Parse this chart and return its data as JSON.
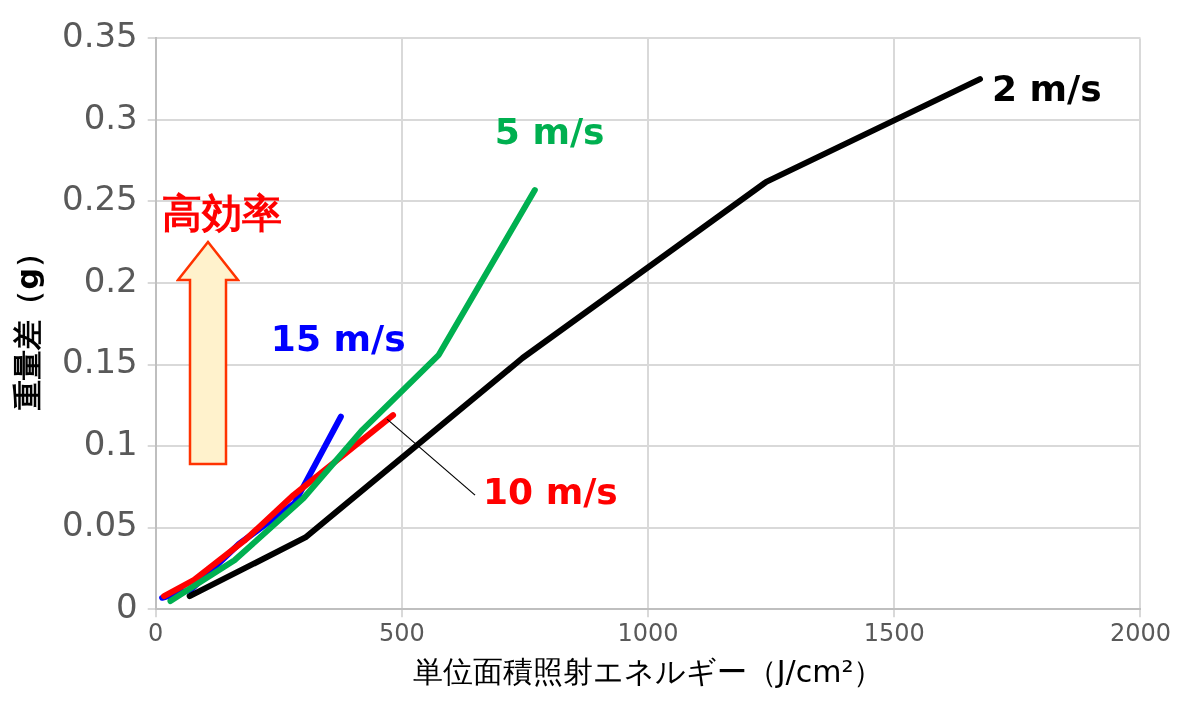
{
  "chart_data": {
    "type": "line",
    "xlabel": "単位面積照射エネルギー（J/cm²）",
    "ylabel": "重量差（g）",
    "xlim": [
      0,
      2000
    ],
    "xticks": [
      0,
      500,
      1000,
      1500,
      2000
    ],
    "ylim": [
      0,
      0.35
    ],
    "yticks": [
      0,
      0.05,
      0.1,
      0.15,
      0.2,
      0.25,
      0.3,
      0.35
    ],
    "grid": true,
    "legend": false,
    "marker": "none",
    "line_style": "solid",
    "annotations": [
      "高効率"
    ],
    "series": [
      {
        "name": "2 m/s",
        "color": "#000000",
        "x": [
          69,
          304,
          745,
          1240,
          1674
        ],
        "values": [
          0.008,
          0.044,
          0.154,
          0.262,
          0.325
        ]
      },
      {
        "name": "5 m/s",
        "color": "#00b050",
        "x": [
          30,
          160,
          300,
          420,
          575,
          770
        ],
        "values": [
          0.005,
          0.03,
          0.068,
          0.11,
          0.156,
          0.257
        ]
      },
      {
        "name": "10 m/s",
        "color": "#ff0000",
        "x": [
          17,
          78,
          180,
          280,
          482
        ],
        "values": [
          0.008,
          0.018,
          0.042,
          0.07,
          0.119
        ]
      },
      {
        "name": "15 m/s",
        "color": "#0000ff",
        "x": [
          13,
          72,
          169,
          282,
          376
        ],
        "values": [
          0.007,
          0.012,
          0.04,
          0.065,
          0.118
        ]
      }
    ]
  }
}
